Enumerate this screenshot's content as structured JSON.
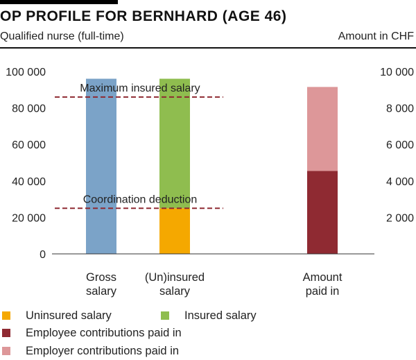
{
  "header": {
    "title": "OP PROFILE FOR BERNHARD (AGE 46)",
    "subtitle": "Qualified nurse (full-time)",
    "unit_label": "Amount in CHF"
  },
  "colors": {
    "gross": "#7ba3c8",
    "uninsured": "#f5a800",
    "insured": "#8fbd4f",
    "employee": "#8f2a32",
    "employer": "#dd9799",
    "threshold": "#8f2a32",
    "axis": "#333333"
  },
  "chart_data": {
    "type": "bar",
    "stacked": true,
    "categories": [
      "Gross\nsalary",
      "(Un)insured\nsalary",
      "Amount\npaid in"
    ],
    "left_axis": {
      "ylim": [
        0,
        100000
      ],
      "ticks": [
        0,
        20000,
        40000,
        60000,
        80000,
        100000
      ],
      "tick_labels": [
        "0",
        "20 000",
        "40 000",
        "60 000",
        "80 000",
        "100 000"
      ]
    },
    "right_axis": {
      "ylim": [
        0,
        10000
      ],
      "ticks": [
        2000,
        4000,
        6000,
        8000,
        10000
      ],
      "tick_labels": [
        "2 000",
        "4 000",
        "6 000",
        "8 000",
        "10 000"
      ]
    },
    "series": [
      {
        "key": "gross",
        "category": 0,
        "axis": "left",
        "base": 0,
        "value": 96000
      },
      {
        "key": "uninsured",
        "category": 1,
        "axis": "left",
        "base": 0,
        "value": 25000
      },
      {
        "key": "insured",
        "category": 1,
        "axis": "left",
        "base": 25000,
        "value": 71000
      },
      {
        "key": "employee",
        "category": 2,
        "axis": "right",
        "base": 0,
        "value": 4550
      },
      {
        "key": "employer",
        "category": 2,
        "axis": "right",
        "base": 4550,
        "value": 4600
      }
    ],
    "thresholds": [
      {
        "label": "Maximum insured salary",
        "value": 86000
      },
      {
        "label": "Coordination deduction",
        "value": 25000
      }
    ],
    "grid": false
  },
  "legend": {
    "items": [
      {
        "key": "uninsured",
        "label": "Uninsured salary"
      },
      {
        "key": "insured",
        "label": "Insured salary"
      },
      {
        "key": "employee",
        "label": "Employee contributions paid in"
      },
      {
        "key": "employer",
        "label": "Employer contributions paid in"
      }
    ]
  }
}
